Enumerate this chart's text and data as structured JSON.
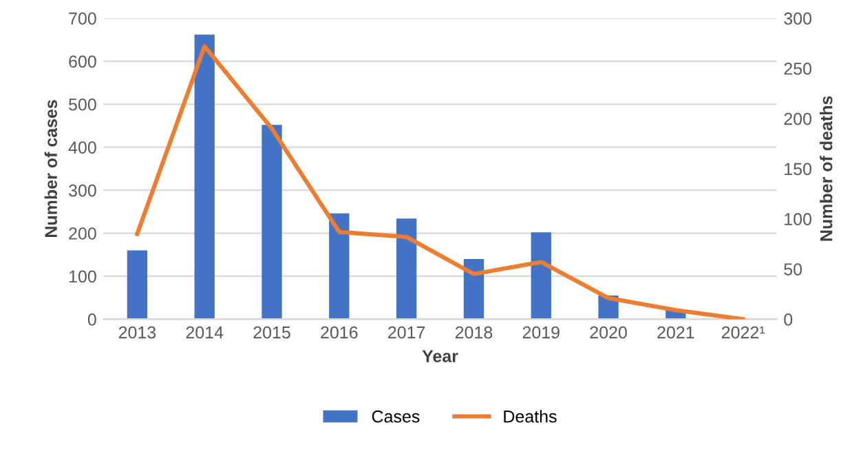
{
  "chart_data": {
    "type": "bar",
    "xlabel": "Year",
    "ylabel": "Number of cases",
    "y2label": "Number of deaths",
    "categories": [
      "2013",
      "2014",
      "2015",
      "2016",
      "2017",
      "2018",
      "2019",
      "2020",
      "2021",
      "2022¹"
    ],
    "series": [
      {
        "name": "Cases",
        "color": "#4472c4",
        "values": [
          160,
          662,
          452,
          246,
          234,
          140,
          202,
          55,
          22,
          null
        ]
      },
      {
        "name": "Deaths",
        "type": "line",
        "axis": "y2",
        "color": "#ed7d31",
        "values": [
          85,
          272,
          190,
          87,
          82,
          45,
          57,
          21,
          9,
          0
        ]
      }
    ],
    "ylim": [
      0,
      700
    ],
    "yticks": [
      0,
      100,
      200,
      300,
      400,
      500,
      600,
      700
    ],
    "y2lim": [
      0,
      300
    ],
    "y2ticks": [
      0,
      50,
      100,
      150,
      200,
      250,
      300
    ],
    "grid": "y",
    "legend": "bottom",
    "marker": "none",
    "line_style": "solid"
  }
}
